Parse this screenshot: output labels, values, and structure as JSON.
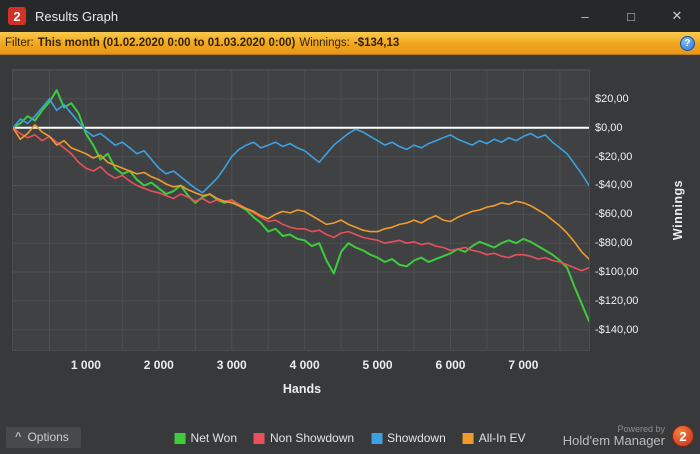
{
  "window": {
    "title": "Results Graph",
    "logo_text": "2",
    "controls": {
      "minimize": "–",
      "maximize": "□",
      "close": "✕"
    }
  },
  "filter": {
    "label": "Filter:",
    "range": "This month (01.02.2020 0:00 to 01.03.2020 0:00)",
    "winnings_label": "Winnings:",
    "winnings_value": "-$134,13",
    "help": "?"
  },
  "chart_data": {
    "type": "line",
    "xlabel": "Hands",
    "ylabel": "Winnings",
    "xlim": [
      0,
      7900
    ],
    "ylim": [
      -154,
      40
    ],
    "x_step": 100,
    "grid": {
      "x_interval": 500,
      "y_interval": 20,
      "color": "#4d4f52"
    },
    "zero_line_color": "#ffffff",
    "x_ticks": [
      {
        "value": 1000,
        "label": "1 000"
      },
      {
        "value": 2000,
        "label": "2 000"
      },
      {
        "value": 3000,
        "label": "3 000"
      },
      {
        "value": 4000,
        "label": "4 000"
      },
      {
        "value": 5000,
        "label": "5 000"
      },
      {
        "value": 6000,
        "label": "6 000"
      },
      {
        "value": 7000,
        "label": "7 000"
      }
    ],
    "y_ticks": [
      {
        "value": 20,
        "label": "$20,00"
      },
      {
        "value": 0,
        "label": "$0,00"
      },
      {
        "value": -20,
        "label": "-$20,00"
      },
      {
        "value": -40,
        "label": "-$40,00"
      },
      {
        "value": -60,
        "label": "-$60,00"
      },
      {
        "value": -80,
        "label": "-$80,00"
      },
      {
        "value": -100,
        "label": "-$100,00"
      },
      {
        "value": -120,
        "label": "-$120,00"
      },
      {
        "value": -140,
        "label": "-$140,00"
      }
    ],
    "series": [
      {
        "name": "Net Won",
        "color": "#3ecc3e",
        "width": 2,
        "values": [
          0,
          3,
          8,
          5,
          12,
          18,
          26,
          14,
          17,
          10,
          -4,
          -12,
          -22,
          -18,
          -28,
          -32,
          -30,
          -36,
          -40,
          -38,
          -42,
          -46,
          -44,
          -40,
          -47,
          -52,
          -48,
          -46,
          -50,
          -52,
          -50,
          -54,
          -57,
          -62,
          -66,
          -72,
          -70,
          -75,
          -74,
          -77,
          -78,
          -82,
          -80,
          -92,
          -101,
          -86,
          -80,
          -83,
          -85,
          -88,
          -90,
          -93,
          -91,
          -95,
          -96,
          -92,
          -90,
          -93,
          -91,
          -89,
          -87,
          -84,
          -86,
          -82,
          -79,
          -81,
          -83,
          -80,
          -78,
          -80,
          -77,
          -79,
          -82,
          -85,
          -88,
          -92,
          -97,
          -110,
          -122,
          -134
        ]
      },
      {
        "name": "Non Showdown",
        "color": "#e8515c",
        "width": 1.6,
        "values": [
          0,
          -4,
          -7,
          -5,
          -9,
          -6,
          -10,
          -14,
          -18,
          -24,
          -28,
          -30,
          -27,
          -32,
          -35,
          -33,
          -37,
          -40,
          -42,
          -44,
          -45,
          -47,
          -49,
          -46,
          -48,
          -51,
          -49,
          -52,
          -50,
          -51,
          -50,
          -53,
          -56,
          -59,
          -62,
          -65,
          -64,
          -67,
          -69,
          -70,
          -70,
          -72,
          -71,
          -74,
          -76,
          -73,
          -72,
          -74,
          -76,
          -77,
          -78,
          -80,
          -79,
          -78,
          -80,
          -79,
          -81,
          -80,
          -82,
          -83,
          -85,
          -84,
          -83,
          -85,
          -86,
          -88,
          -87,
          -89,
          -90,
          -88,
          -88,
          -89,
          -91,
          -90,
          -92,
          -93,
          -95,
          -97,
          -99,
          -97
        ]
      },
      {
        "name": "Showdown",
        "color": "#3da0e0",
        "width": 1.6,
        "values": [
          0,
          6,
          3,
          8,
          14,
          20,
          12,
          16,
          10,
          4,
          -2,
          -6,
          -4,
          -8,
          -12,
          -10,
          -14,
          -18,
          -16,
          -22,
          -28,
          -32,
          -30,
          -34,
          -38,
          -42,
          -45,
          -40,
          -35,
          -28,
          -20,
          -15,
          -12,
          -10,
          -14,
          -12,
          -10,
          -13,
          -11,
          -14,
          -16,
          -20,
          -24,
          -18,
          -12,
          -8,
          -4,
          -1,
          -3,
          -6,
          -9,
          -12,
          -10,
          -13,
          -15,
          -12,
          -14,
          -11,
          -9,
          -7,
          -5,
          -8,
          -10,
          -12,
          -9,
          -11,
          -8,
          -10,
          -7,
          -9,
          -6,
          -4,
          -7,
          -5,
          -10,
          -14,
          -18,
          -25,
          -32,
          -40
        ]
      },
      {
        "name": "All-In EV",
        "color": "#ef9b2e",
        "width": 1.6,
        "values": [
          0,
          -8,
          -4,
          2,
          -3,
          -6,
          -12,
          -9,
          -14,
          -16,
          -18,
          -21,
          -19,
          -24,
          -26,
          -28,
          -30,
          -32,
          -31,
          -34,
          -36,
          -39,
          -41,
          -40,
          -43,
          -45,
          -47,
          -46,
          -49,
          -51,
          -52,
          -54,
          -56,
          -58,
          -61,
          -63,
          -60,
          -58,
          -59,
          -57,
          -58,
          -61,
          -64,
          -67,
          -66,
          -64,
          -67,
          -69,
          -71,
          -72,
          -72,
          -70,
          -69,
          -67,
          -66,
          -64,
          -66,
          -63,
          -61,
          -64,
          -65,
          -62,
          -60,
          -58,
          -57,
          -55,
          -54,
          -52,
          -53,
          -51,
          -52,
          -54,
          -57,
          -60,
          -64,
          -68,
          -73,
          -79,
          -86,
          -91
        ]
      }
    ]
  },
  "footer": {
    "options_label": "Options",
    "chevron": "^",
    "powered_by": "Powered by",
    "brand": "Hold'em Manager",
    "badge": "2"
  }
}
